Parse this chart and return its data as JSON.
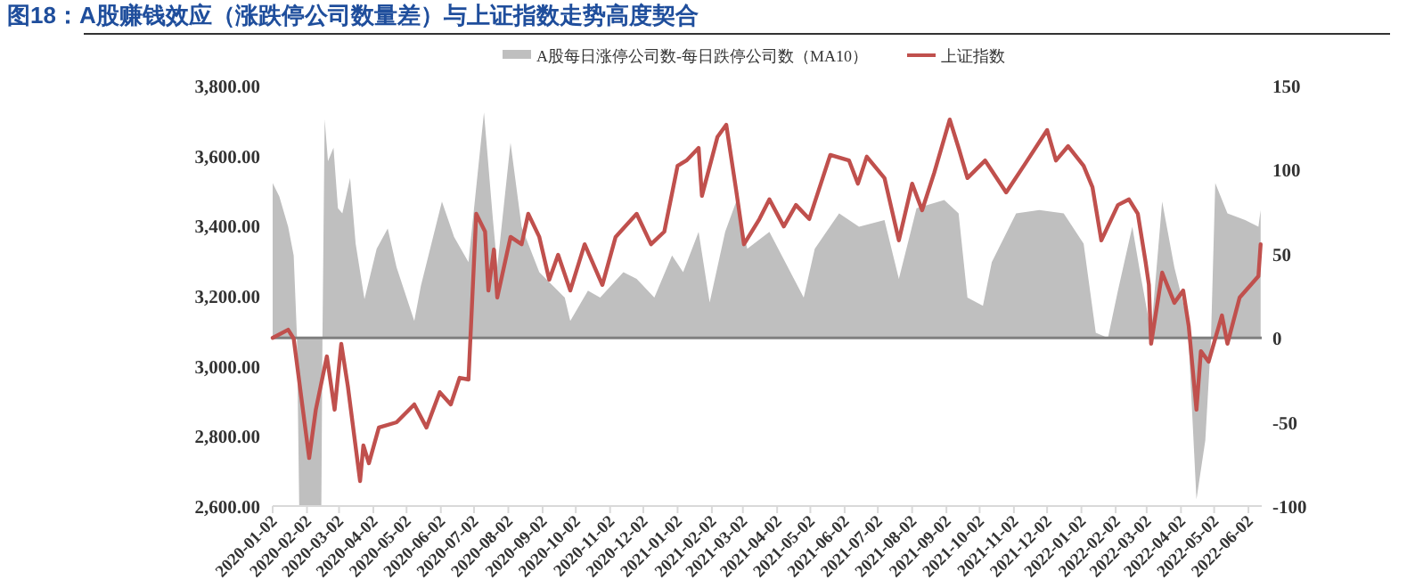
{
  "chart_data": {
    "type": "area",
    "title": "图18：A股赚钱效应（涨跌停公司数量差）与上证指数走势高度契合",
    "legend": "top",
    "xlim": [
      "2020-01-02",
      "2022-06-14"
    ],
    "xticks": [
      "2020-01-02",
      "2020-02-02",
      "2020-03-02",
      "2020-04-02",
      "2020-05-02",
      "2020-06-02",
      "2020-07-02",
      "2020-08-02",
      "2020-09-02",
      "2020-10-02",
      "2020-11-02",
      "2020-12-02",
      "2021-01-02",
      "2021-02-02",
      "2021-03-02",
      "2021-04-02",
      "2021-05-02",
      "2021-06-02",
      "2021-07-02",
      "2021-08-02",
      "2021-09-02",
      "2021-10-02",
      "2021-11-02",
      "2021-12-02",
      "2022-01-02",
      "2022-02-02",
      "2022-03-02",
      "2022-04-02",
      "2022-05-02",
      "2022-06-02"
    ],
    "ylim": [
      2600,
      3800
    ],
    "yticks": [
      {
        "value": 2600,
        "label": "2,600.00"
      },
      {
        "value": 2800,
        "label": "2,800.00"
      },
      {
        "value": 3000,
        "label": "3,000.00"
      },
      {
        "value": 3200,
        "label": "3,200.00"
      },
      {
        "value": 3400,
        "label": "3,400.00"
      },
      {
        "value": 3600,
        "label": "3,600.00"
      },
      {
        "value": 3800,
        "label": "3,800.00"
      }
    ],
    "y2lim": [
      -100,
      150
    ],
    "y2ticks": [
      -100,
      -50,
      0,
      50,
      100,
      150
    ],
    "ref_lines": [
      {
        "axis": "y2",
        "value": 0,
        "color": "#7f7f7f"
      }
    ],
    "series": [
      {
        "name": "A股每日涨停公司数-每日跌停公司数（MA10）",
        "axis": "y2",
        "color": "#bfbfbf",
        "x": [
          "2020-01-02",
          "2020-01-08",
          "2020-01-16",
          "2020-01-21",
          "2020-01-24",
          "2020-01-26",
          "2020-02-15",
          "2020-02-16",
          "2020-02-18",
          "2020-02-21",
          "2020-02-26",
          "2020-03-01",
          "2020-03-05",
          "2020-03-12",
          "2020-03-17",
          "2020-03-25",
          "2020-04-05",
          "2020-04-15",
          "2020-04-23",
          "2020-05-09",
          "2020-05-15",
          "2020-06-03",
          "2020-06-14",
          "2020-06-27",
          "2020-07-11",
          "2020-07-19",
          "2020-07-23",
          "2020-08-04",
          "2020-08-14",
          "2020-08-30",
          "2020-09-22",
          "2020-09-27",
          "2020-10-13",
          "2020-10-24",
          "2020-11-14",
          "2020-11-26",
          "2020-12-12",
          "2020-12-28",
          "2021-01-07",
          "2021-01-21",
          "2021-01-31",
          "2021-02-14",
          "2021-02-24",
          "2021-03-06",
          "2021-03-26",
          "2021-04-26",
          "2021-05-06",
          "2021-05-28",
          "2021-06-15",
          "2021-07-08",
          "2021-07-21",
          "2021-08-06",
          "2021-08-31",
          "2021-09-13",
          "2021-09-21",
          "2021-10-05",
          "2021-10-13",
          "2021-11-04",
          "2021-11-25",
          "2021-12-17",
          "2022-01-04",
          "2022-01-15",
          "2022-01-26",
          "2022-02-04",
          "2022-02-17",
          "2022-02-24",
          "2022-03-06",
          "2022-03-16",
          "2022-03-27",
          "2022-04-08",
          "2022-04-16",
          "2022-04-24",
          "2022-04-29",
          "2022-05-03",
          "2022-05-14",
          "2022-05-30",
          "2022-06-11",
          "2022-06-13"
        ],
        "values": [
          92,
          84,
          66,
          49,
          0,
          -100,
          -100,
          0,
          130,
          105,
          113,
          77,
          74,
          95,
          56,
          23,
          53,
          65,
          42,
          10,
          31,
          81,
          60,
          45,
          134,
          71,
          42,
          116,
          66,
          39,
          24,
          10,
          28,
          24,
          39,
          35,
          24,
          49,
          39,
          63,
          21,
          63,
          81,
          53,
          63,
          24,
          53,
          74,
          66,
          70,
          35,
          77,
          82,
          74,
          24,
          19,
          45,
          74,
          76,
          74,
          56,
          3,
          0,
          28,
          66,
          39,
          3,
          81,
          42,
          10,
          -96,
          -61,
          -3,
          92,
          74,
          70,
          66,
          76
        ]
      },
      {
        "name": "上证指数",
        "type": "line",
        "axis": "y",
        "color": "#c0504d",
        "x": [
          "2020-01-02",
          "2020-01-16",
          "2020-01-21",
          "2020-02-04",
          "2020-02-10",
          "2020-02-20",
          "2020-02-27",
          "2020-03-04",
          "2020-03-10",
          "2020-03-21",
          "2020-03-24",
          "2020-03-29",
          "2020-04-07",
          "2020-04-23",
          "2020-05-09",
          "2020-05-20",
          "2020-06-01",
          "2020-06-11",
          "2020-06-19",
          "2020-06-27",
          "2020-07-04",
          "2020-07-12",
          "2020-07-15",
          "2020-07-20",
          "2020-07-23",
          "2020-08-04",
          "2020-08-14",
          "2020-08-20",
          "2020-08-30",
          "2020-09-08",
          "2020-09-16",
          "2020-09-27",
          "2020-10-10",
          "2020-10-26",
          "2020-11-07",
          "2020-11-26",
          "2020-12-09",
          "2020-12-21",
          "2021-01-02",
          "2021-01-10",
          "2021-01-21",
          "2021-01-24",
          "2021-02-07",
          "2021-02-15",
          "2021-02-24",
          "2021-03-03",
          "2021-03-17",
          "2021-03-26",
          "2021-04-08",
          "2021-04-19",
          "2021-05-01",
          "2021-05-20",
          "2021-06-06",
          "2021-06-14",
          "2021-06-22",
          "2021-07-08",
          "2021-07-21",
          "2021-08-02",
          "2021-08-11",
          "2021-08-22",
          "2021-09-05",
          "2021-09-13",
          "2021-09-21",
          "2021-10-07",
          "2021-10-26",
          "2021-11-12",
          "2021-12-02",
          "2021-12-10",
          "2021-12-21",
          "2022-01-04",
          "2022-01-12",
          "2022-01-20",
          "2022-02-04",
          "2022-02-14",
          "2022-02-22",
          "2022-03-01",
          "2022-03-04",
          "2022-03-06",
          "2022-03-16",
          "2022-03-27",
          "2022-04-04",
          "2022-04-09",
          "2022-04-16",
          "2022-04-20",
          "2022-04-27",
          "2022-05-09",
          "2022-05-14",
          "2022-05-25",
          "2022-06-11",
          "2022-06-13"
        ],
        "values": [
          3080,
          3103,
          3078,
          2737,
          2875,
          3027,
          2875,
          3063,
          2941,
          2671,
          2773,
          2722,
          2824,
          2839,
          2890,
          2824,
          2925,
          2890,
          2966,
          2961,
          3434,
          3383,
          3215,
          3332,
          3195,
          3368,
          3347,
          3434,
          3368,
          3246,
          3317,
          3215,
          3347,
          3231,
          3368,
          3434,
          3347,
          3383,
          3571,
          3586,
          3622,
          3485,
          3653,
          3688,
          3500,
          3347,
          3419,
          3475,
          3398,
          3459,
          3419,
          3602,
          3586,
          3520,
          3597,
          3536,
          3358,
          3520,
          3444,
          3551,
          3703,
          3622,
          3536,
          3586,
          3495,
          3576,
          3673,
          3586,
          3627,
          3571,
          3510,
          3358,
          3459,
          3475,
          3434,
          3297,
          3231,
          3063,
          3266,
          3180,
          3215,
          3114,
          2875,
          3042,
          3012,
          3144,
          3063,
          3195,
          3256,
          3347
        ]
      }
    ]
  }
}
